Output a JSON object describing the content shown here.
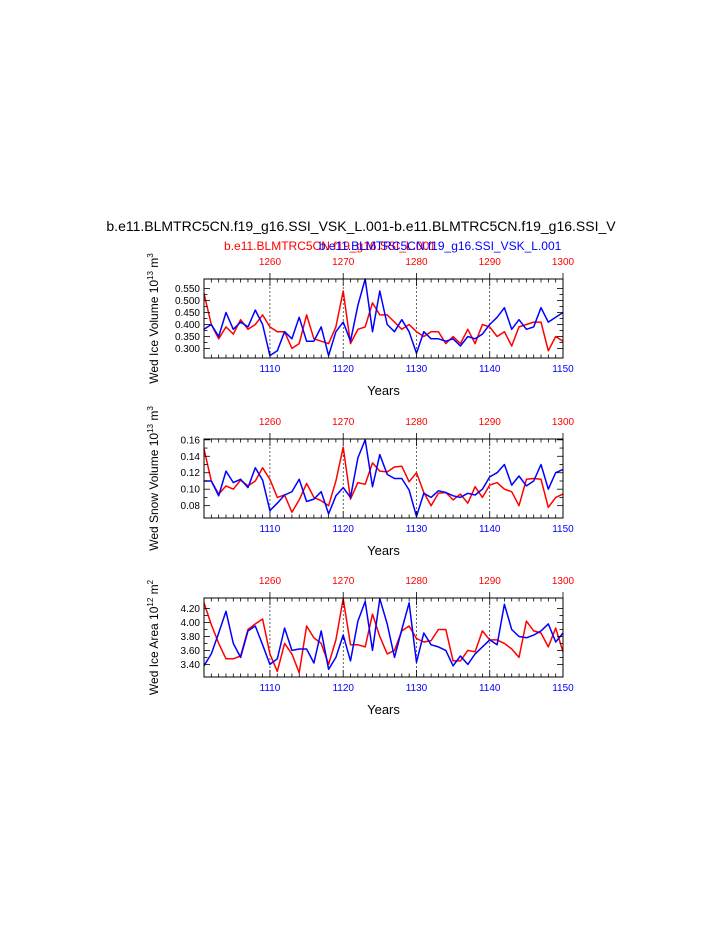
{
  "page": {
    "title": "b.e11.BLMTRC5CN.f19_g16.SSI_VSK_L.001-b.e11.BLMTRC5CN.f19_g16.SSI_V",
    "legend_red": "b.e11.BLMTRC5CN.f19_g16.SSI_L.001",
    "legend_blue": "b.e11.BLMTRC5CN.f19_g16.SSI_VSK_L.001"
  },
  "colors": {
    "red": "#ff0000",
    "blue": "#0000ff",
    "axis": "#000000",
    "grid": "#000000"
  },
  "chart_data": [
    {
      "type": "line",
      "ylabel": "Wed Ice Volume 10",
      "ylabel_exp": "13",
      "ylabel_unit": " m",
      "ylabel_unit_exp": "3",
      "xlabel": "Years",
      "ylim": [
        0.26,
        0.59
      ],
      "yticks": [
        "0.300",
        "0.350",
        "0.400",
        "0.450",
        "0.500",
        "0.550"
      ],
      "top_ticks": [
        "1260",
        "1270",
        "1280",
        "1290",
        "1300"
      ],
      "bottom_ticks": [
        "1110",
        "1120",
        "1130",
        "1140",
        "1150"
      ],
      "xlim": [
        1101,
        1150
      ],
      "series": [
        {
          "name": "b.e11.BLMTRC5CN.f19_g16.SSI_VSK_L.001",
          "color": "#0000ff",
          "values": [
            0.38,
            0.4,
            0.35,
            0.45,
            0.38,
            0.41,
            0.39,
            0.46,
            0.4,
            0.27,
            0.29,
            0.37,
            0.34,
            0.43,
            0.33,
            0.33,
            0.39,
            0.27,
            0.37,
            0.41,
            0.33,
            0.48,
            0.59,
            0.37,
            0.54,
            0.4,
            0.37,
            0.42,
            0.37,
            0.28,
            0.37,
            0.34,
            0.34,
            0.33,
            0.34,
            0.31,
            0.35,
            0.34,
            0.36,
            0.4,
            0.43,
            0.47,
            0.38,
            0.42,
            0.38,
            0.39,
            0.47,
            0.41,
            0.43,
            0.45
          ]
        },
        {
          "name": "b.e11.BLMTRC5CN.f19_g16.SSI_L.001",
          "color": "#ff0000",
          "values": [
            0.53,
            0.4,
            0.34,
            0.39,
            0.36,
            0.42,
            0.38,
            0.4,
            0.44,
            0.39,
            0.37,
            0.37,
            0.3,
            0.32,
            0.44,
            0.34,
            0.33,
            0.32,
            0.39,
            0.54,
            0.32,
            0.38,
            0.39,
            0.49,
            0.44,
            0.44,
            0.41,
            0.38,
            0.4,
            0.37,
            0.35,
            0.37,
            0.37,
            0.32,
            0.35,
            0.32,
            0.38,
            0.32,
            0.4,
            0.39,
            0.35,
            0.37,
            0.31,
            0.39,
            0.4,
            0.41,
            0.41,
            0.29,
            0.35,
            0.33
          ]
        }
      ]
    },
    {
      "type": "line",
      "ylabel": "Wed Snow Volume 10",
      "ylabel_exp": "13",
      "ylabel_unit": " m",
      "ylabel_unit_exp": "3",
      "xlabel": "Years",
      "ylim": [
        0.065,
        0.161
      ],
      "yticks": [
        "0.08",
        "0.10",
        "0.12",
        "0.14",
        "0.16"
      ],
      "top_ticks": [
        "1260",
        "1270",
        "1280",
        "1290",
        "1300"
      ],
      "bottom_ticks": [
        "1110",
        "1120",
        "1130",
        "1140",
        "1150"
      ],
      "xlim": [
        1101,
        1150
      ],
      "series": [
        {
          "name": "b.e11.BLMTRC5CN.f19_g16.SSI_VSK_L.001",
          "color": "#0000ff",
          "values": [
            0.11,
            0.11,
            0.092,
            0.122,
            0.108,
            0.112,
            0.102,
            0.126,
            0.111,
            0.074,
            0.083,
            0.093,
            0.097,
            0.112,
            0.085,
            0.088,
            0.097,
            0.07,
            0.092,
            0.102,
            0.09,
            0.138,
            0.16,
            0.103,
            0.142,
            0.118,
            0.113,
            0.113,
            0.099,
            0.067,
            0.095,
            0.09,
            0.098,
            0.096,
            0.092,
            0.09,
            0.095,
            0.093,
            0.1,
            0.115,
            0.12,
            0.13,
            0.105,
            0.116,
            0.104,
            0.11,
            0.13,
            0.1,
            0.12,
            0.124
          ]
        },
        {
          "name": "b.e11.BLMTRC5CN.f19_g16.SSI_L.001",
          "color": "#ff0000",
          "values": [
            0.149,
            0.11,
            0.094,
            0.104,
            0.1,
            0.111,
            0.104,
            0.11,
            0.126,
            0.112,
            0.09,
            0.093,
            0.072,
            0.087,
            0.107,
            0.09,
            0.086,
            0.08,
            0.11,
            0.151,
            0.088,
            0.108,
            0.106,
            0.132,
            0.122,
            0.121,
            0.127,
            0.128,
            0.109,
            0.12,
            0.096,
            0.08,
            0.095,
            0.096,
            0.087,
            0.094,
            0.083,
            0.103,
            0.09,
            0.105,
            0.108,
            0.1,
            0.097,
            0.08,
            0.112,
            0.113,
            0.112,
            0.078,
            0.09,
            0.094
          ]
        }
      ]
    },
    {
      "type": "line",
      "ylabel": "Wed Ice Area 10",
      "ylabel_exp": "12",
      "ylabel_unit": " m",
      "ylabel_unit_exp": "2",
      "xlabel": "Years",
      "ylim": [
        3.22,
        4.35
      ],
      "yticks": [
        "3.40",
        "3.60",
        "3.80",
        "4.00",
        "4.20"
      ],
      "top_ticks": [
        "1260",
        "1270",
        "1280",
        "1290",
        "1300"
      ],
      "bottom_ticks": [
        "1110",
        "1120",
        "1130",
        "1140",
        "1150"
      ],
      "xlim": [
        1101,
        1150
      ],
      "series": [
        {
          "name": "b.e11.BLMTRC5CN.f19_g16.SSI_VSK_L.001",
          "color": "#0000ff",
          "values": [
            3.38,
            3.55,
            3.85,
            4.16,
            3.7,
            3.5,
            3.88,
            3.95,
            3.68,
            3.4,
            3.48,
            3.92,
            3.6,
            3.62,
            3.62,
            3.42,
            3.88,
            3.33,
            3.5,
            3.82,
            3.45,
            4.02,
            4.3,
            3.6,
            4.34,
            3.98,
            3.5,
            3.9,
            4.28,
            3.43,
            3.85,
            3.68,
            3.65,
            3.6,
            3.38,
            3.52,
            3.4,
            3.55,
            3.65,
            3.75,
            3.68,
            4.26,
            3.9,
            3.8,
            3.78,
            3.82,
            3.88,
            3.98,
            3.72,
            3.85
          ]
        },
        {
          "name": "b.e11.BLMTRC5CN.f19_g16.SSI_L.001",
          "color": "#ff0000",
          "values": [
            4.28,
            3.97,
            3.7,
            3.48,
            3.48,
            3.52,
            3.9,
            3.98,
            4.05,
            3.55,
            3.3,
            3.7,
            3.55,
            3.28,
            3.95,
            3.78,
            3.7,
            3.4,
            3.75,
            4.34,
            3.68,
            3.68,
            3.65,
            4.12,
            3.8,
            3.55,
            3.6,
            3.88,
            3.95,
            3.77,
            3.72,
            3.74,
            3.9,
            3.9,
            3.45,
            3.45,
            3.6,
            3.58,
            3.88,
            3.75,
            3.75,
            3.7,
            3.62,
            3.5,
            4.02,
            3.88,
            3.85,
            3.65,
            3.92,
            3.58
          ]
        }
      ]
    }
  ]
}
